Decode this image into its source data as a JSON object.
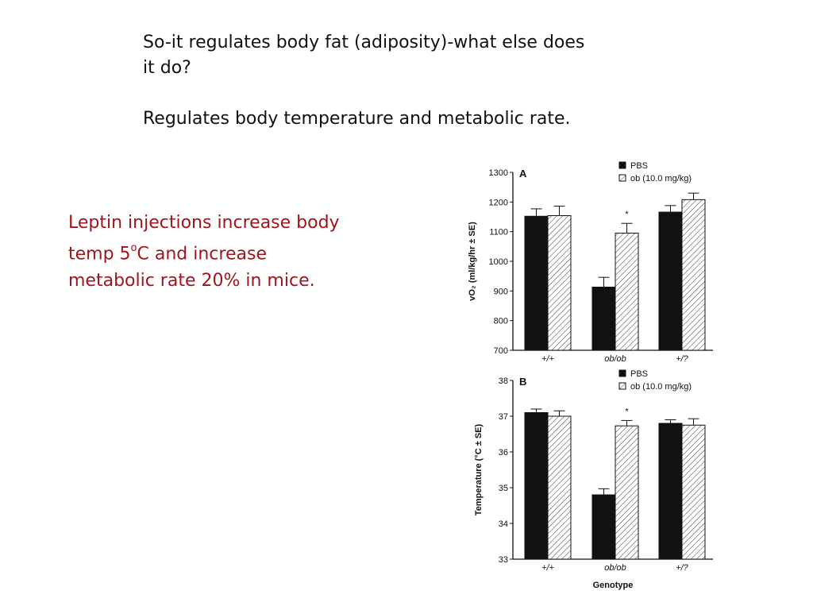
{
  "slide": {
    "question": "So-it regulates body fat (adiposity)-what else does it do?",
    "answer": "Regulates body temperature and metabolic rate.",
    "callout_before_sup": "Leptin injections increase body temp 5",
    "callout_sup": "o",
    "callout_after_sup": "C and increase metabolic rate 20% in mice.",
    "callout_color": "#a0141b"
  },
  "chart_data": [
    {
      "type": "bar",
      "panel": "A",
      "ylabel": "vO₂ (ml/kg/hr ± SE)",
      "xlabel": "",
      "ylim": [
        700,
        1300
      ],
      "yticks": [
        700,
        800,
        900,
        1000,
        1100,
        1200,
        1300
      ],
      "categories": [
        "+/+",
        "ob/ob",
        "+/?"
      ],
      "series": [
        {
          "name": "PBS",
          "pattern": "solid",
          "values": [
            1152,
            913,
            1166
          ],
          "errors": [
            25,
            33,
            22
          ]
        },
        {
          "name": "ob (10.0 mg/kg)",
          "pattern": "hatched",
          "values": [
            1154,
            1095,
            1208
          ],
          "errors": [
            32,
            33,
            22
          ]
        }
      ],
      "annotations": [
        {
          "category": "ob/ob",
          "series": "ob (10.0 mg/kg)",
          "text": "*"
        }
      ],
      "legend_position": "top-right"
    },
    {
      "type": "bar",
      "panel": "B",
      "ylabel": "Temperature (°C ± SE)",
      "xlabel": "Genotype",
      "ylim": [
        33,
        38
      ],
      "yticks": [
        33,
        34,
        35,
        36,
        37,
        38
      ],
      "categories": [
        "+/+",
        "ob/ob",
        "+/?"
      ],
      "series": [
        {
          "name": "PBS",
          "pattern": "solid",
          "values": [
            37.1,
            34.8,
            36.8
          ],
          "errors": [
            0.1,
            0.17,
            0.1
          ]
        },
        {
          "name": "ob (10.0 mg/kg)",
          "pattern": "hatched",
          "values": [
            37.0,
            36.73,
            36.75
          ],
          "errors": [
            0.15,
            0.15,
            0.18
          ]
        }
      ],
      "annotations": [
        {
          "category": "ob/ob",
          "series": "ob (10.0 mg/kg)",
          "text": "*"
        }
      ],
      "legend_position": "top-right"
    }
  ]
}
